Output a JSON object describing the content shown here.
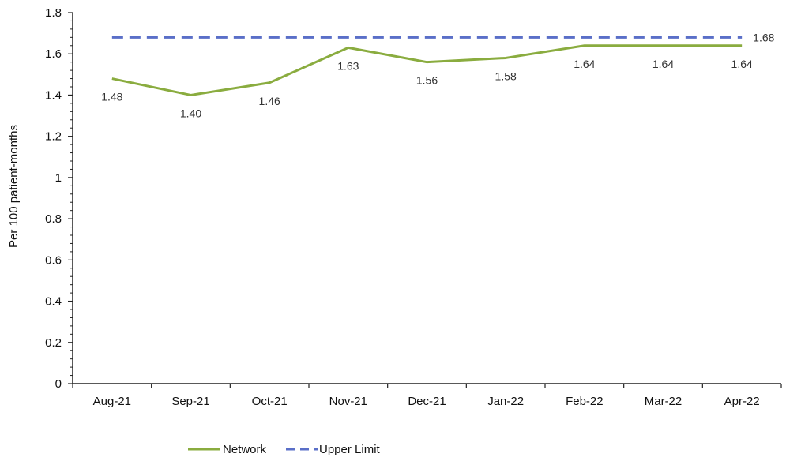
{
  "chart_data": {
    "type": "line",
    "categories": [
      "Aug-21",
      "Sep-21",
      "Oct-21",
      "Nov-21",
      "Dec-21",
      "Jan-22",
      "Feb-22",
      "Mar-22",
      "Apr-22"
    ],
    "series": [
      {
        "name": "Network",
        "values": [
          1.48,
          1.4,
          1.46,
          1.63,
          1.56,
          1.58,
          1.64,
          1.64,
          1.64
        ],
        "data_labels": [
          "1.48",
          "1.40",
          "1.46",
          "1.63",
          "1.56",
          "1.58",
          "1.64",
          "1.64",
          "1.64"
        ],
        "color": "#8aac3f",
        "style": "solid"
      },
      {
        "name": "Upper Limit",
        "values": [
          1.68,
          1.68,
          1.68,
          1.68,
          1.68,
          1.68,
          1.68,
          1.68,
          1.68
        ],
        "data_labels": [
          "",
          "",
          "",
          "",
          "",
          "",
          "",
          "",
          "1.68"
        ],
        "color": "#5a6fc8",
        "style": "dashed"
      }
    ],
    "title": "",
    "xlabel": "",
    "ylabel": "Per 100 patient-months",
    "ylim": [
      0,
      1.8
    ],
    "yticks": [
      "0",
      "0.2",
      "0.4",
      "0.6",
      "0.8",
      "1",
      "1.2",
      "1.4",
      "1.6",
      "1.8"
    ],
    "grid": false,
    "legend_position": "bottom"
  }
}
